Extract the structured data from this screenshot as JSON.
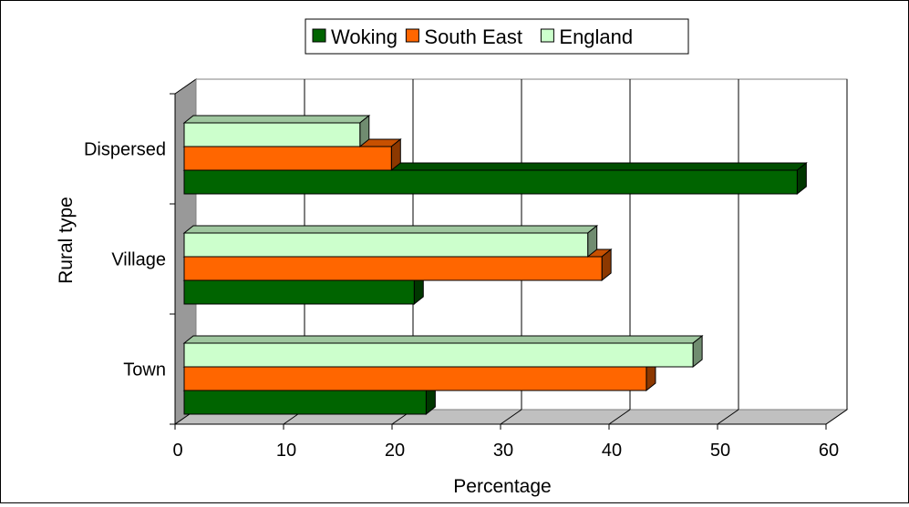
{
  "chart_data": {
    "type": "bar",
    "orientation": "horizontal",
    "style": "3d",
    "title": "",
    "xlabel": "Percentage",
    "ylabel": "Rural type",
    "xlim": [
      0,
      60
    ],
    "x_ticks": [
      "0",
      "10",
      "20",
      "30",
      "40",
      "50",
      "60"
    ],
    "categories": [
      "Town",
      "Village",
      "Dispersed"
    ],
    "grid": true,
    "legend_position": "top-center",
    "series": [
      {
        "name": "Woking",
        "color": "#006400",
        "values": [
          22.3,
          21.2,
          56.5
        ]
      },
      {
        "name": "South East",
        "color": "#FF6600",
        "values": [
          42.6,
          38.5,
          19.1
        ]
      },
      {
        "name": "England",
        "color": "#CCFFCC",
        "values": [
          46.9,
          37.2,
          16.2
        ]
      }
    ]
  }
}
